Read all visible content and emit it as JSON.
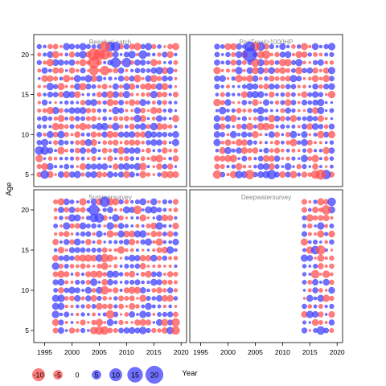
{
  "chart_data": {
    "type": "scatter",
    "xlabel": "Year",
    "ylabel": "Age",
    "xlim": [
      1993,
      2021
    ],
    "ylim": [
      3.5,
      22.5
    ],
    "x_ticks": [
      1995,
      2000,
      2005,
      2010,
      2015,
      2020
    ],
    "y_ticks": [
      5,
      10,
      15,
      20
    ],
    "colors": {
      "negative": "#ff5050",
      "positive": "#4040ff",
      "stroke_negative": "#ff6464",
      "stroke_positive": "#5050ff"
    },
    "legend": {
      "placement": "bottom",
      "values": [
        -10,
        -5,
        0,
        5,
        10,
        15,
        20
      ]
    },
    "panels": [
      {
        "title": "Residual catch",
        "years": [
          1994,
          2019
        ],
        "highlights": [
          {
            "x": 2004,
            "y": 20,
            "v": -9
          },
          {
            "x": 2004,
            "y": 19,
            "v": -8
          },
          {
            "x": 2005,
            "y": 20,
            "v": -7
          },
          {
            "x": 2006,
            "y": 21,
            "v": -6
          },
          {
            "x": 2006,
            "y": 20,
            "v": -6
          },
          {
            "x": 2007,
            "y": 21,
            "v": 5
          },
          {
            "x": 2008,
            "y": 19,
            "v": 6
          },
          {
            "x": 2008,
            "y": 21,
            "v": 5
          },
          {
            "x": 2010,
            "y": 19,
            "v": 5
          },
          {
            "x": 2004,
            "y": 18,
            "v": -5
          },
          {
            "x": 2006,
            "y": 18,
            "v": -5
          },
          {
            "x": 2013,
            "y": 20,
            "v": 4
          },
          {
            "x": 1995,
            "y": 5,
            "v": 4
          },
          {
            "x": 1994,
            "y": 8,
            "v": 4
          },
          {
            "x": 1995,
            "y": 8,
            "v": 4
          }
        ]
      },
      {
        "title": "PairTrawl>1000HP",
        "years": [
          1998,
          2019
        ],
        "highlights": [
          {
            "x": 2004,
            "y": 20,
            "v": 13
          },
          {
            "x": 2004,
            "y": 21,
            "v": 6
          },
          {
            "x": 2005,
            "y": 21,
            "v": -5
          },
          {
            "x": 2006,
            "y": 21,
            "v": 4
          },
          {
            "x": 2005,
            "y": 19,
            "v": -4
          },
          {
            "x": 2007,
            "y": 20,
            "v": -4
          },
          {
            "x": 2004,
            "y": 5,
            "v": -5
          },
          {
            "x": 2008,
            "y": 5,
            "v": 5
          },
          {
            "x": 2017,
            "y": 5,
            "v": -6
          },
          {
            "x": 2018,
            "y": 5,
            "v": 5
          },
          {
            "x": 1998,
            "y": 5,
            "v": -4
          },
          {
            "x": 2016,
            "y": 5,
            "v": -4
          }
        ]
      },
      {
        "title": "Summersurvey",
        "years": [
          1997,
          2019
        ],
        "highlights": [
          {
            "x": 2006,
            "y": 21,
            "v": 6
          },
          {
            "x": 2004,
            "y": 20,
            "v": 7
          },
          {
            "x": 2005,
            "y": 19,
            "v": 5
          },
          {
            "x": 2004,
            "y": 19,
            "v": 4
          },
          {
            "x": 2012,
            "y": 20,
            "v": -4
          },
          {
            "x": 2006,
            "y": 5,
            "v": -4
          },
          {
            "x": 2005,
            "y": 5,
            "v": -4
          },
          {
            "x": 2019,
            "y": 5,
            "v": -4
          },
          {
            "x": 2019,
            "y": 6,
            "v": -4
          },
          {
            "x": 2006,
            "y": 14,
            "v": -4
          },
          {
            "x": 2006,
            "y": 10,
            "v": -4
          },
          {
            "x": 2007,
            "y": 7,
            "v": -4
          }
        ]
      },
      {
        "title": "Deepwatersurvey",
        "years": [
          2014,
          2019
        ],
        "highlights": [
          {
            "x": 2019,
            "y": 21,
            "v": 4
          },
          {
            "x": 2018,
            "y": 20,
            "v": -5
          },
          {
            "x": 2017,
            "y": 15,
            "v": -5
          },
          {
            "x": 2016,
            "y": 15,
            "v": 4
          },
          {
            "x": 2017,
            "y": 5,
            "v": 4
          },
          {
            "x": 2016,
            "y": 12,
            "v": -4
          }
        ]
      }
    ]
  }
}
